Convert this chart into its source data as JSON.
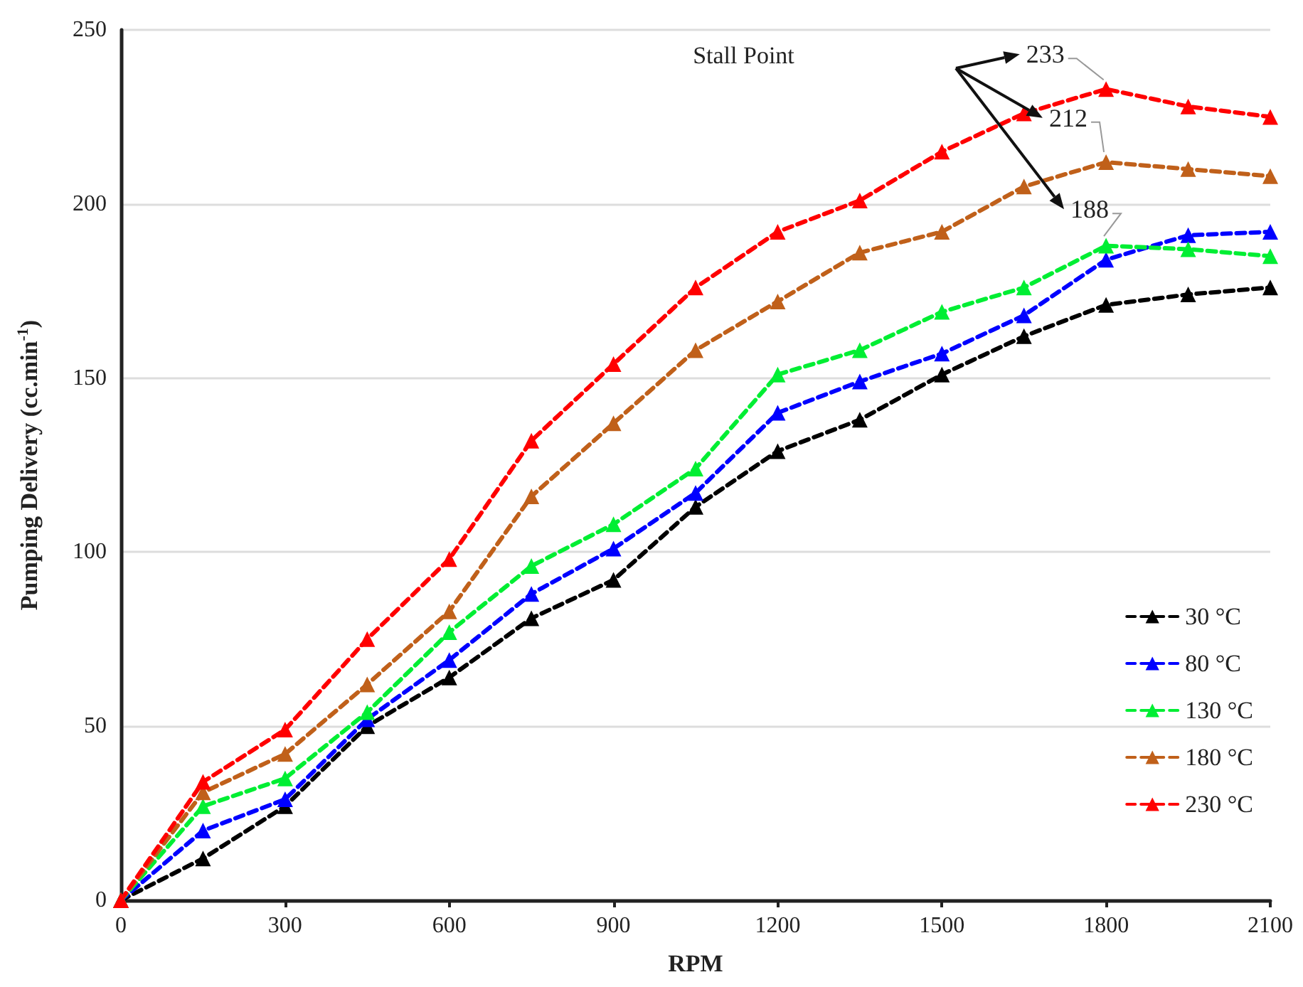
{
  "chart_data": {
    "type": "line",
    "xlabel": "RPM",
    "ylabel": "Pumping Delivery (cc.min$^{-1}$)",
    "x": [
      0,
      150,
      300,
      450,
      600,
      750,
      900,
      1050,
      1200,
      1350,
      1500,
      1650,
      1800,
      1950,
      2100
    ],
    "series": [
      {
        "name": "30 °C",
        "color": "#000000",
        "values": [
          0,
          12,
          27,
          50,
          64,
          81,
          92,
          113,
          129,
          138,
          151,
          162,
          171,
          174,
          176
        ]
      },
      {
        "name": "80 °C",
        "color": "#0000ff",
        "values": [
          0,
          20,
          29,
          52,
          69,
          88,
          101,
          117,
          140,
          149,
          157,
          168,
          184,
          191,
          192
        ]
      },
      {
        "name": "130 °C",
        "color": "#00ee33",
        "values": [
          0,
          27,
          35,
          54,
          77,
          96,
          108,
          124,
          151,
          158,
          169,
          176,
          188,
          187,
          185
        ]
      },
      {
        "name": "180 °C",
        "color": "#c0601a",
        "values": [
          0,
          31,
          42,
          62,
          83,
          116,
          137,
          158,
          172,
          186,
          192,
          205,
          212,
          210,
          208
        ]
      },
      {
        "name": "230 °C",
        "color": "#ff0000",
        "values": [
          0,
          34,
          49,
          75,
          98,
          132,
          154,
          176,
          192,
          201,
          215,
          226,
          233,
          228,
          225
        ]
      }
    ],
    "xlim": [
      0,
      2100
    ],
    "xticks": [
      0,
      300,
      600,
      900,
      1200,
      1500,
      1800,
      2100
    ],
    "ylim": [
      0,
      250
    ],
    "yticks": [
      0,
      50,
      100,
      150,
      200,
      250
    ],
    "grid": "y",
    "legend": "bottom right",
    "marker": "triangle",
    "line_style": "dashed",
    "annotations": [
      "Stall Point",
      "233",
      "212",
      "188"
    ]
  }
}
